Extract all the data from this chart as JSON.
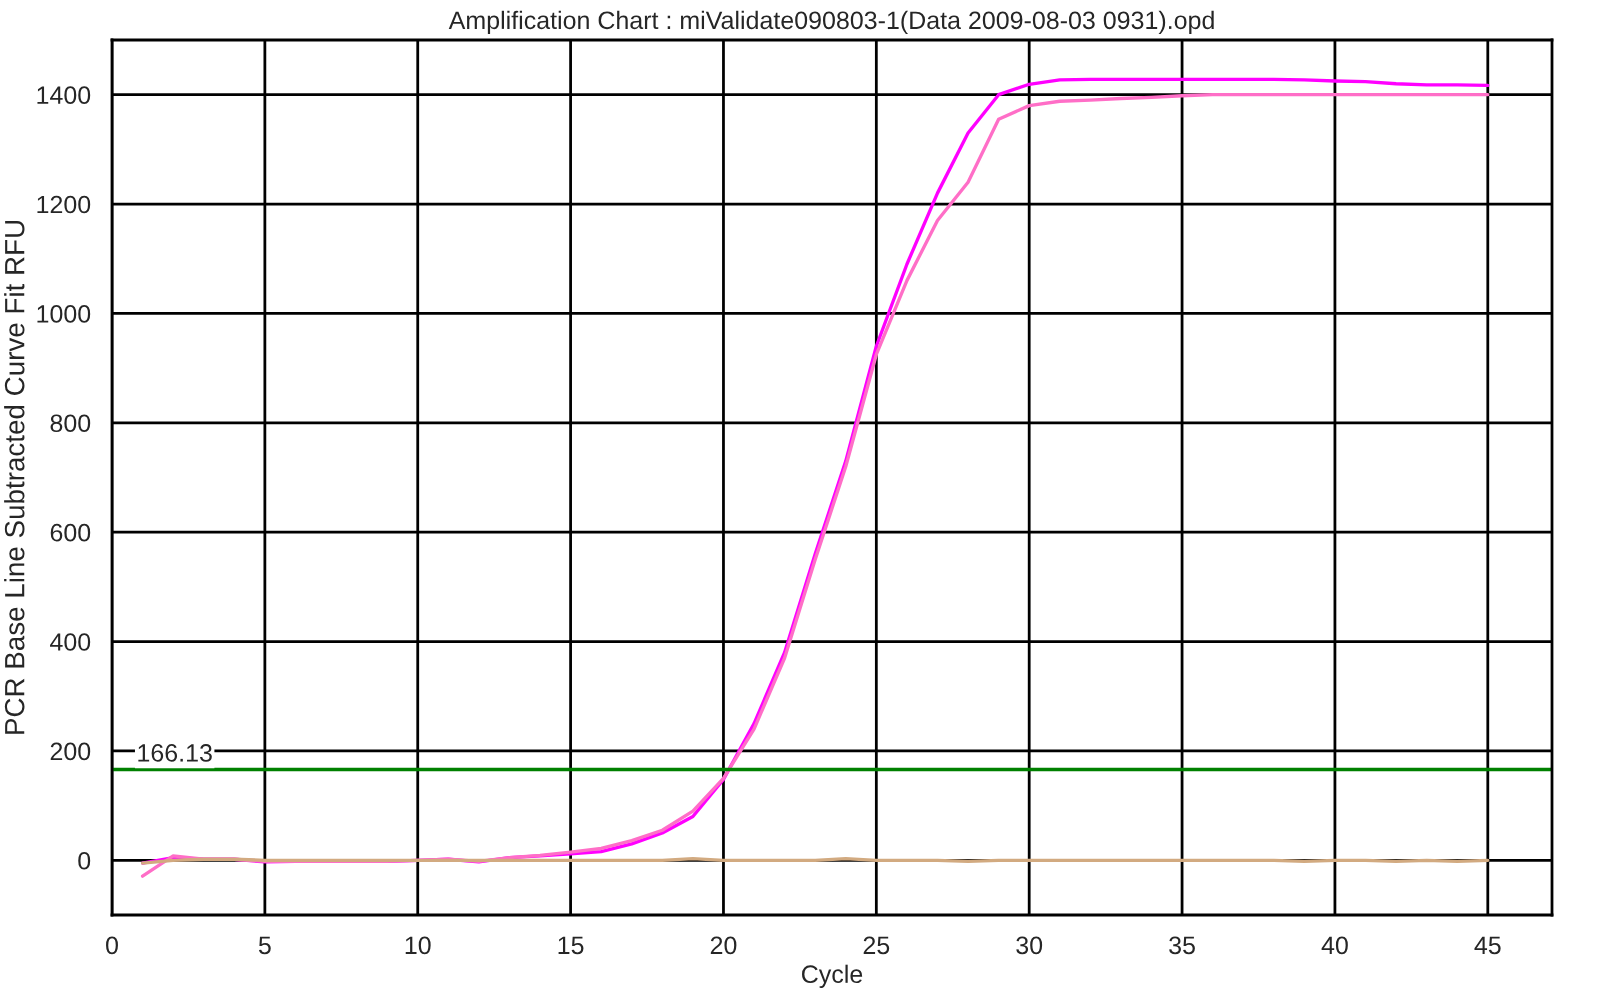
{
  "chart_data": {
    "type": "line",
    "title": "Amplification Chart : miValidate090803-1(Data 2009-08-03 0931).opd",
    "xlabel": "Cycle",
    "ylabel": "PCR Base Line Subtracted Curve Fit RFU",
    "x": [
      1,
      2,
      3,
      4,
      5,
      6,
      7,
      8,
      9,
      10,
      11,
      12,
      13,
      14,
      15,
      16,
      17,
      18,
      19,
      20,
      21,
      22,
      23,
      24,
      25,
      26,
      27,
      28,
      29,
      30,
      31,
      32,
      33,
      34,
      35,
      36,
      37,
      38,
      39,
      40,
      41,
      42,
      43,
      44,
      45
    ],
    "series": [
      {
        "color": "#ff00ff",
        "values": [
          -5,
          5,
          2,
          2,
          -3,
          -2,
          -2,
          -2,
          -2,
          0,
          2,
          -3,
          5,
          8,
          12,
          16,
          30,
          50,
          80,
          148,
          250,
          380,
          560,
          730,
          940,
          1090,
          1220,
          1330,
          1400,
          1419,
          1427,
          1428,
          1428,
          1428,
          1428,
          1428,
          1428,
          1428,
          1427,
          1425,
          1424,
          1420,
          1418,
          1418,
          1417
        ]
      },
      {
        "color": "#ff6ec7",
        "values": [
          -29,
          8,
          2,
          2,
          -2,
          -2,
          -2,
          -2,
          -2,
          0,
          2,
          -2,
          5,
          9,
          15,
          22,
          36,
          55,
          90,
          150,
          240,
          370,
          550,
          720,
          925,
          1060,
          1170,
          1240,
          1355,
          1380,
          1388,
          1390,
          1393,
          1395,
          1398,
          1400,
          1400,
          1400,
          1400,
          1400,
          1400,
          1400,
          1400,
          1400,
          1400
        ]
      },
      {
        "color": "#d2aa80",
        "values": [
          -5,
          0,
          2,
          2,
          0,
          0,
          0,
          0,
          0,
          0,
          0,
          0,
          0,
          0,
          0,
          0,
          0,
          0,
          3,
          0,
          0,
          0,
          0,
          3,
          0,
          0,
          0,
          -2,
          0,
          0,
          0,
          0,
          0,
          0,
          0,
          0,
          0,
          0,
          -2,
          0,
          0,
          -2,
          0,
          -2,
          0
        ]
      }
    ],
    "xlim": [
      0,
      47.1
    ],
    "ylim": [
      -100,
      1500
    ],
    "xticks": [
      0,
      5,
      10,
      15,
      20,
      25,
      30,
      35,
      40,
      45
    ],
    "yticks": [
      0,
      200,
      400,
      600,
      800,
      1000,
      1200,
      1400
    ],
    "ref_lines": [
      {
        "axis": "y",
        "value": 166.13,
        "label": "166.13",
        "color": "#008000"
      }
    ],
    "grid": true,
    "marker": "none",
    "line_style": "solid",
    "legend": false
  }
}
